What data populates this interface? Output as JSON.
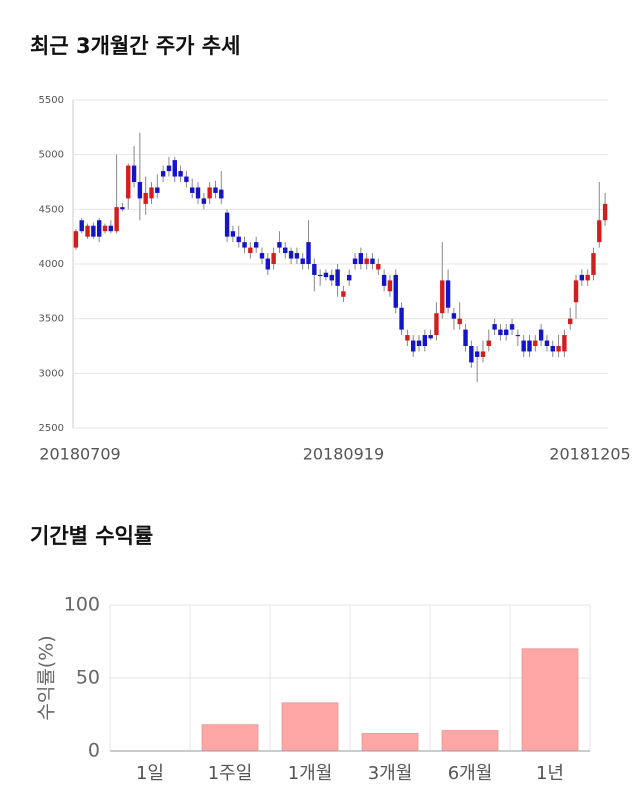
{
  "chart_data": [
    {
      "type": "candlestick",
      "title": "최근 3개월간 주가 추세",
      "categories": [
        "20180709",
        null,
        null,
        null,
        null,
        null,
        null,
        null,
        null,
        null,
        null,
        null,
        null,
        null,
        null,
        null,
        null,
        null,
        null,
        null,
        null,
        null,
        null,
        null,
        null,
        null,
        null,
        null,
        null,
        null,
        null,
        null,
        null,
        null,
        null,
        null,
        null,
        null,
        null,
        null,
        null,
        null,
        null,
        null,
        null,
        null,
        "20180919",
        null,
        null,
        null,
        null,
        null,
        null,
        null,
        null,
        null,
        null,
        null,
        null,
        null,
        null,
        null,
        null,
        null,
        null,
        null,
        null,
        null,
        null,
        null,
        null,
        null,
        null,
        null,
        null,
        null,
        null,
        null,
        null,
        null,
        null,
        null,
        null,
        null,
        null,
        null,
        null,
        null,
        null,
        null,
        null,
        "20181205"
      ],
      "open": [
        4150,
        4400,
        4250,
        4350,
        4400,
        4300,
        4350,
        4300,
        4520,
        4600,
        4900,
        4750,
        4550,
        4600,
        4700,
        4850,
        4900,
        4950,
        4850,
        4800,
        4700,
        4700,
        4600,
        4600,
        4700,
        4680,
        4470,
        4300,
        4250,
        4200,
        4100,
        4200,
        4100,
        4050,
        4000,
        4200,
        4150,
        4120,
        4100,
        4050,
        4200,
        4000,
        3900,
        3920,
        3900,
        3950,
        3700,
        3900,
        4050,
        4100,
        4000,
        4050,
        3950,
        3900,
        3750,
        3900,
        3600,
        3300,
        3300,
        3300,
        3350,
        3350,
        3350,
        3550,
        3850,
        3550,
        3450,
        3400,
        3250,
        3200,
        3150,
        3250,
        3450,
        3400,
        3400,
        3450,
        3350,
        3300,
        3300,
        3250,
        3400,
        3300,
        3250,
        3200,
        3200,
        3450,
        3650,
        3900,
        3850,
        3900,
        4200,
        4400
      ],
      "high": [
        4320,
        4420,
        4370,
        4380,
        4420,
        4370,
        4400,
        5000,
        4560,
        4920,
        5080,
        5200,
        4800,
        4750,
        4820,
        4900,
        4980,
        4980,
        4900,
        4850,
        4780,
        4750,
        4650,
        4750,
        4760,
        4850,
        4500,
        4350,
        4350,
        4250,
        4200,
        4250,
        4150,
        4100,
        4150,
        4300,
        4200,
        4150,
        4150,
        4100,
        4400,
        4050,
        3950,
        3950,
        3950,
        4000,
        3800,
        3950,
        4100,
        4150,
        4100,
        4100,
        4050,
        3950,
        3900,
        3950,
        3650,
        3400,
        3350,
        3350,
        3400,
        3400,
        3650,
        4200,
        3950,
        3600,
        3650,
        3450,
        3300,
        3250,
        3300,
        3400,
        3500,
        3450,
        3450,
        3500,
        3400,
        3350,
        3350,
        3350,
        3450,
        3350,
        3300,
        3350,
        3400,
        3600,
        3900,
        3950,
        3950,
        4150,
        4750,
        4650
      ],
      "low": [
        4130,
        4280,
        4230,
        4230,
        4200,
        4280,
        4280,
        4280,
        4480,
        4500,
        4700,
        4400,
        4450,
        4550,
        4600,
        4750,
        4800,
        4750,
        4750,
        4700,
        4600,
        4550,
        4500,
        4550,
        4600,
        4550,
        4200,
        4200,
        4150,
        4100,
        4050,
        4100,
        4000,
        3900,
        3950,
        4100,
        4050,
        4000,
        4000,
        3950,
        3950,
        3750,
        3800,
        3850,
        3800,
        3700,
        3650,
        3800,
        3950,
        3950,
        3950,
        3950,
        3900,
        3750,
        3700,
        3550,
        3350,
        3250,
        3150,
        3200,
        3200,
        3300,
        3300,
        3500,
        3550,
        3400,
        3400,
        3200,
        3050,
        2920,
        3100,
        3200,
        3350,
        3300,
        3300,
        3350,
        3250,
        3150,
        3150,
        3200,
        3250,
        3200,
        3150,
        3150,
        3150,
        3400,
        3500,
        3800,
        3800,
        3850,
        4150,
        4350
      ],
      "close": [
        4300,
        4300,
        4350,
        4250,
        4250,
        4350,
        4300,
        4520,
        4500,
        4900,
        4750,
        4600,
        4650,
        4700,
        4650,
        4800,
        4850,
        4800,
        4800,
        4750,
        4650,
        4600,
        4550,
        4700,
        4650,
        4600,
        4250,
        4250,
        4200,
        4150,
        4150,
        4150,
        4050,
        3950,
        4100,
        4150,
        4100,
        4050,
        4050,
        4000,
        4000,
        3900,
        3890,
        3880,
        3850,
        3800,
        3750,
        3850,
        4000,
        4000,
        4050,
        4000,
        4000,
        3800,
        3850,
        3600,
        3400,
        3350,
        3200,
        3250,
        3250,
        3320,
        3550,
        3850,
        3600,
        3500,
        3500,
        3250,
        3100,
        3150,
        3200,
        3300,
        3400,
        3350,
        3350,
        3400,
        3340,
        3200,
        3200,
        3300,
        3300,
        3250,
        3200,
        3250,
        3350,
        3500,
        3850,
        3850,
        3900,
        4100,
        4400,
        4550
      ],
      "up_color": "#d41d1d",
      "down_color": "#1414c8",
      "ylim": [
        2500,
        5500
      ],
      "yticks": [
        2500,
        3000,
        3500,
        4000,
        4500,
        5000,
        5500
      ],
      "grid": true
    },
    {
      "type": "bar",
      "title": "기간별 수익률",
      "ylabel": "수익률(%)",
      "categories": [
        "1일",
        "1주일",
        "1개월",
        "3개월",
        "6개월",
        "1년"
      ],
      "values": [
        0,
        18,
        33,
        12,
        14,
        70
      ],
      "color": "#ffa6a6",
      "ylim": [
        0,
        100
      ],
      "yticks": [
        0,
        50,
        100
      ],
      "grid": true
    }
  ]
}
